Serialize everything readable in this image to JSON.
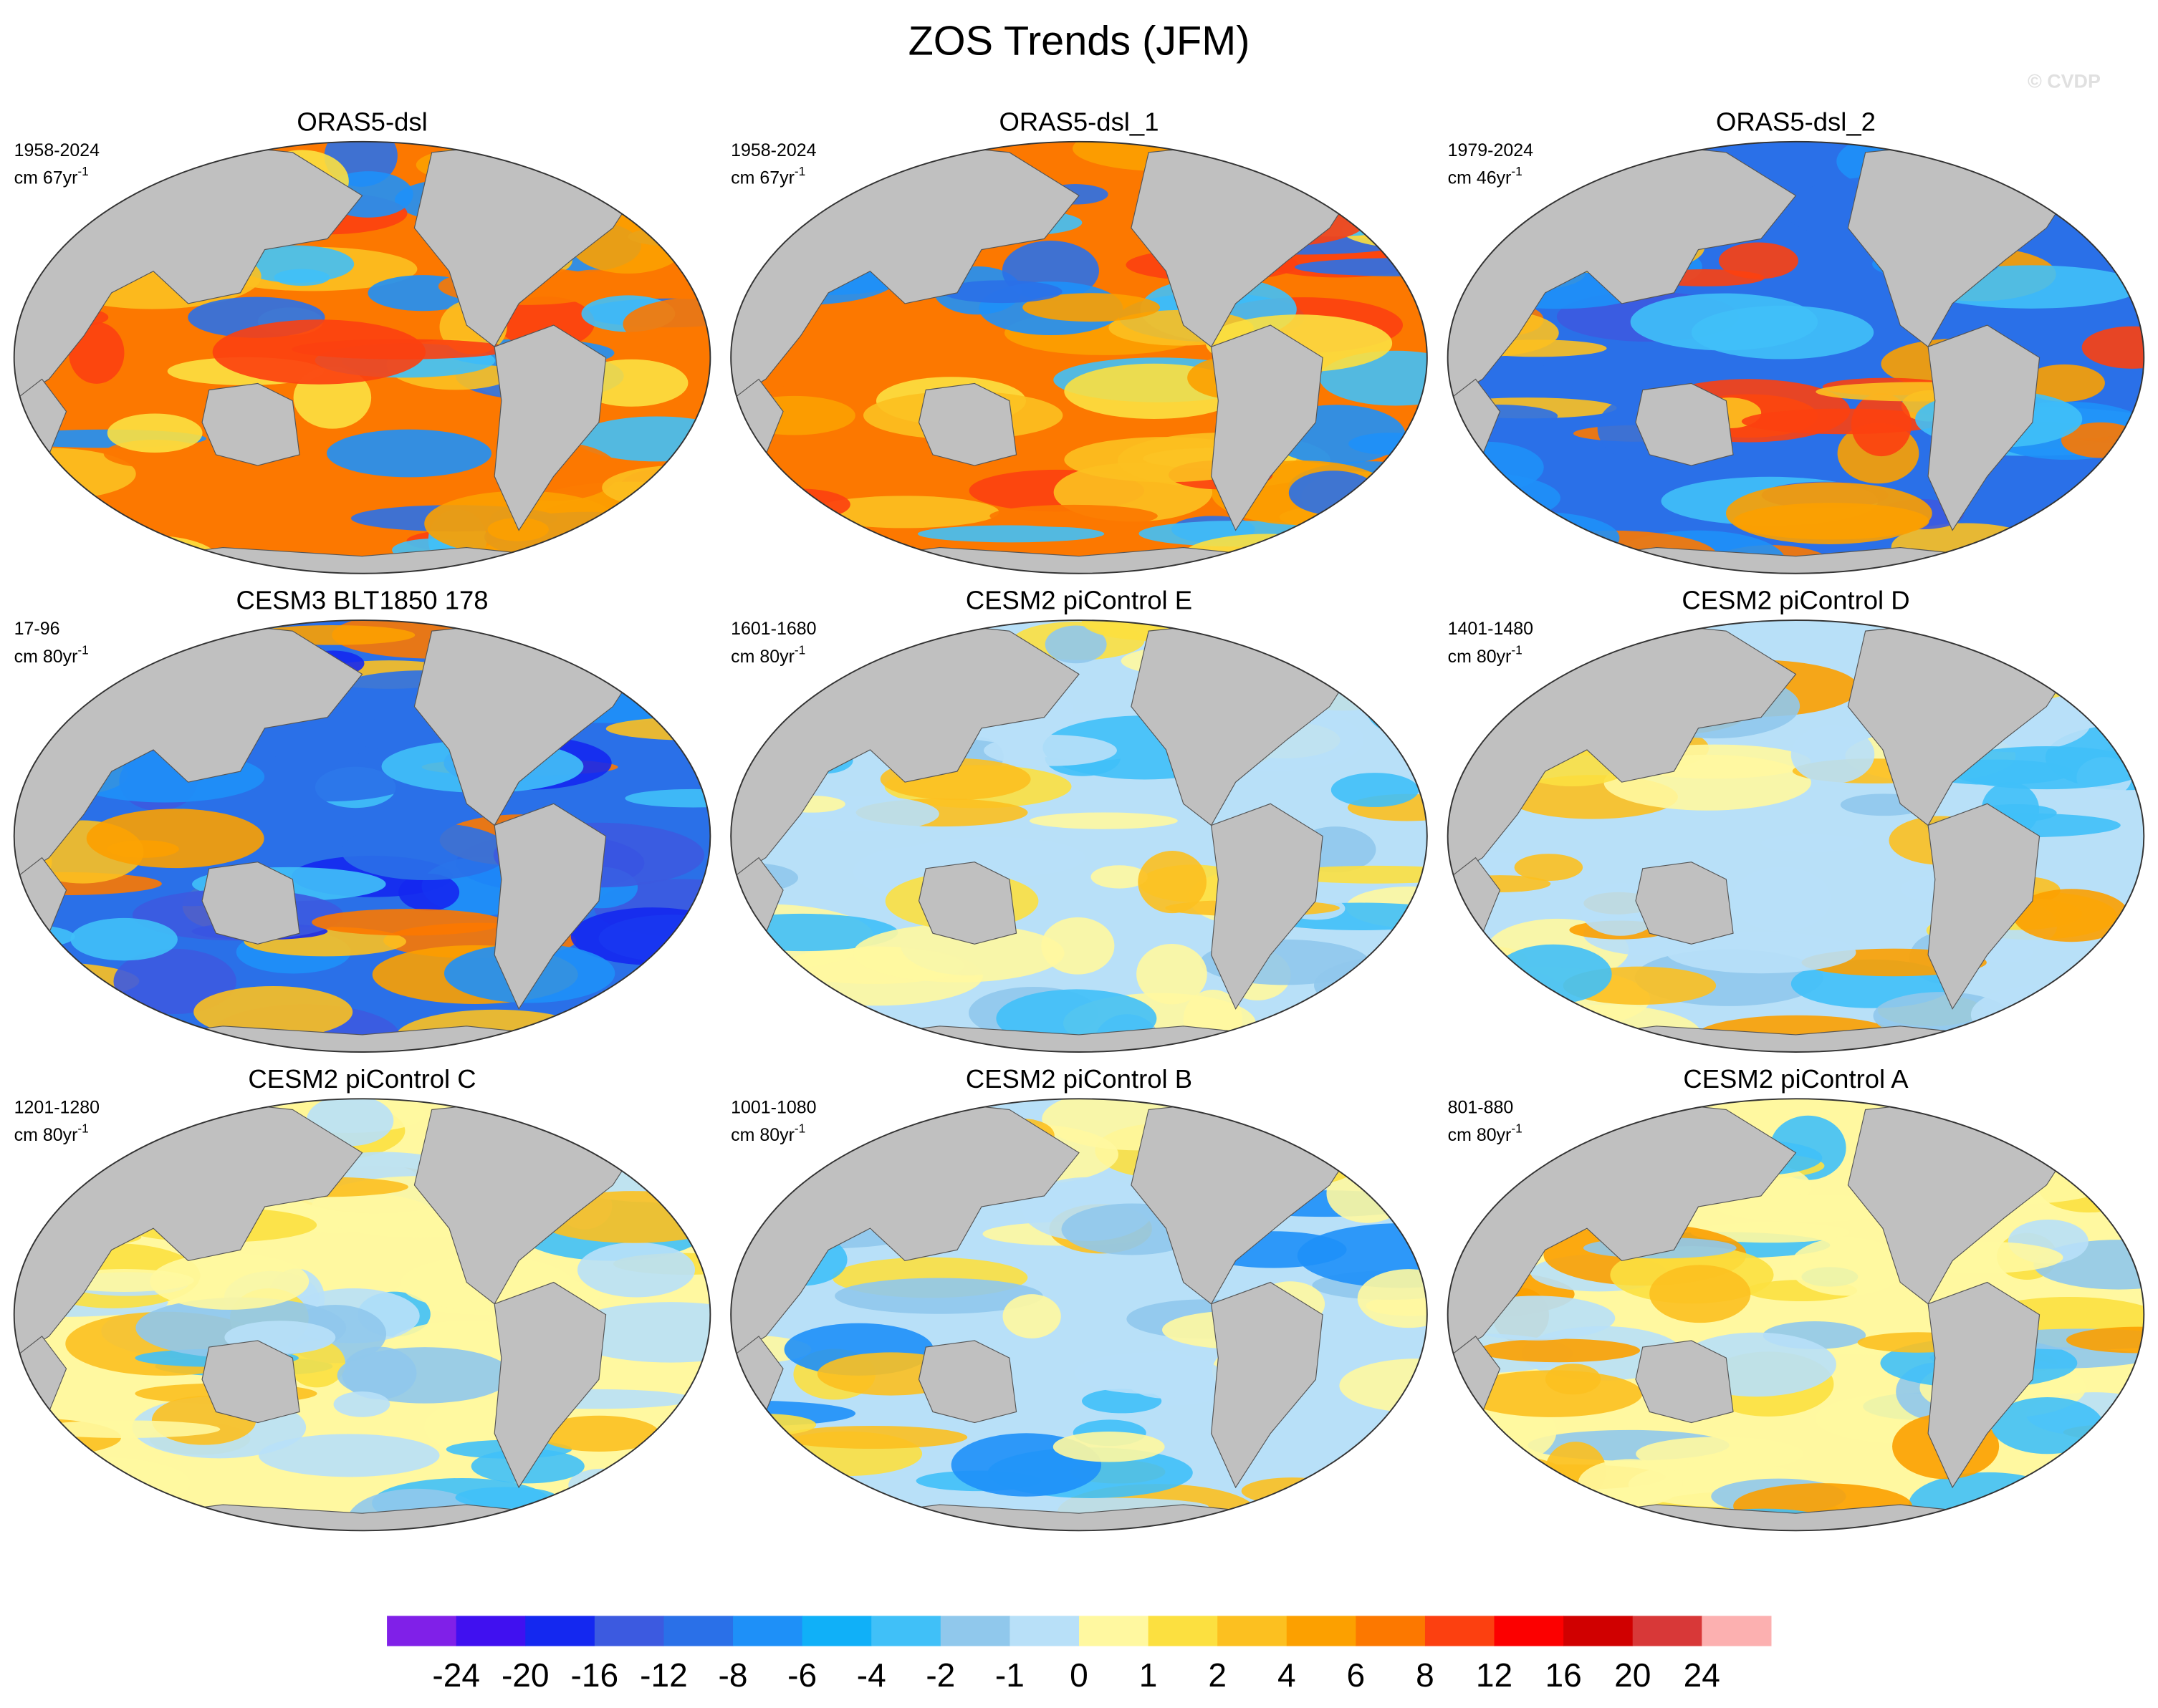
{
  "title": "ZOS Trends (JFM)",
  "watermark": "© CVDP",
  "panels": [
    {
      "title": "ORAS5-dsl",
      "period": "1958-2024",
      "units": "cm 67yr",
      "exponent": "-1",
      "colors": [
        "#fc7800",
        "#fcc020",
        "#2a70e8",
        "#1e90f8",
        "#fca000",
        "#fc4010",
        "#40c0f8",
        "#fce040"
      ]
    },
    {
      "title": "ORAS5-dsl_1",
      "period": "1958-2024",
      "units": "cm 67yr",
      "exponent": "-1",
      "colors": [
        "#fc7800",
        "#fcc020",
        "#2a70e8",
        "#1e90f8",
        "#fca000",
        "#fc4010",
        "#40c0f8",
        "#fce040"
      ]
    },
    {
      "title": "ORAS5-dsl_2",
      "period": "1979-2024",
      "units": "cm 46yr",
      "exponent": "-1",
      "colors": [
        "#2a70e8",
        "#fca000",
        "#1e90f8",
        "#fc7800",
        "#fc4010",
        "#40c0f8",
        "#fcc020",
        "#3c5ae0"
      ]
    },
    {
      "title": "CESM3 BLT1850 178",
      "period": "17-96",
      "units": "cm 80yr",
      "exponent": "-1",
      "colors": [
        "#2a70e8",
        "#3c5ae0",
        "#1e90f8",
        "#fcc020",
        "#40c0f8",
        "#fca000",
        "#1428f0",
        "#fc7800"
      ]
    },
    {
      "title": "CESM2 piControl E",
      "period": "1601-1680",
      "units": "cm 80yr",
      "exponent": "-1",
      "colors": [
        "#b8e0f8",
        "#fff8a0",
        "#90c8ec",
        "#fce040",
        "#fcc020",
        "#b8e0f8",
        "#40c0f8",
        "#fff8a0"
      ]
    },
    {
      "title": "CESM2 piControl D",
      "period": "1401-1480",
      "units": "cm 80yr",
      "exponent": "-1",
      "colors": [
        "#b8e0f8",
        "#90c8ec",
        "#fff8a0",
        "#fce040",
        "#40c0f8",
        "#fcc020",
        "#b8e0f8",
        "#fca000"
      ]
    },
    {
      "title": "CESM2 piControl C",
      "period": "1201-1280",
      "units": "cm 80yr",
      "exponent": "-1",
      "colors": [
        "#fff8a0",
        "#b8e0f8",
        "#fce040",
        "#90c8ec",
        "#40c0f8",
        "#fcc020",
        "#fff8a0",
        "#b8e0f8"
      ]
    },
    {
      "title": "CESM2 piControl B",
      "period": "1001-1080",
      "units": "cm 80yr",
      "exponent": "-1",
      "colors": [
        "#b8e0f8",
        "#fff8a0",
        "#90c8ec",
        "#fce040",
        "#40c0f8",
        "#fcc020",
        "#1e90f8",
        "#fff8a0"
      ]
    },
    {
      "title": "CESM2 piControl A",
      "period": "801-880",
      "units": "cm 80yr",
      "exponent": "-1",
      "colors": [
        "#fff8a0",
        "#b8e0f8",
        "#fce040",
        "#90c8ec",
        "#fcc020",
        "#40c0f8",
        "#fca000",
        "#fff8a0"
      ]
    }
  ],
  "colorbar": {
    "colors": [
      "#8020e8",
      "#4010f0",
      "#1428f0",
      "#3c5ae0",
      "#2a70e8",
      "#1e90f8",
      "#10b0f8",
      "#40c0f8",
      "#90c8ec",
      "#b8e0f8",
      "#fff8a0",
      "#fce040",
      "#fcc020",
      "#fca000",
      "#fc7800",
      "#fc4010",
      "#fc0000",
      "#d00000",
      "#d83838",
      "#fcb0b0"
    ],
    "labels": [
      -24,
      -20,
      -16,
      -12,
      -8,
      -6,
      -4,
      -2,
      -1,
      0,
      1,
      2,
      4,
      6,
      8,
      12,
      16,
      20,
      24
    ]
  }
}
